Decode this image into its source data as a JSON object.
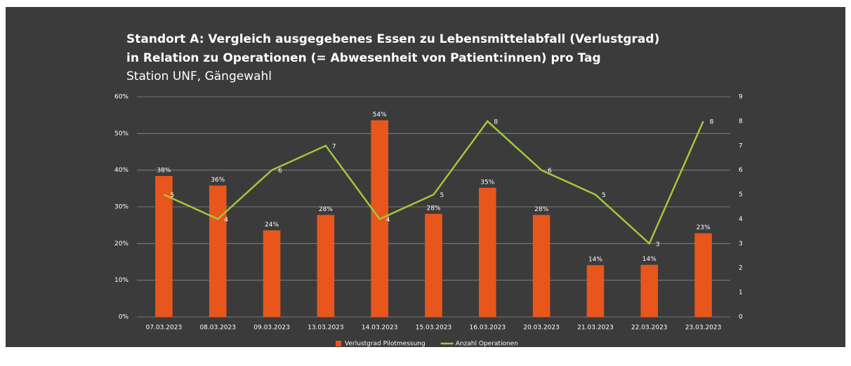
{
  "chart_data": {
    "type": "bar_line",
    "title": "Standort A: Vergleich ausgegebenes Essen zu Lebensmittelabfall (Verlustgrad)",
    "title_line2": "in Relation zu Operationen (= Abwesenheit von Patient:innen) pro Tag",
    "subtitle": "Station UNF, Gängewahl",
    "categories": [
      "07.03.2023",
      "08.03.2023",
      "09.03.2023",
      "13.03.2023",
      "14.03.2023",
      "15.03.2023",
      "16.03.2023",
      "20.03.2023",
      "21.03.2023",
      "22.03.2023",
      "23.03.2023"
    ],
    "series": [
      {
        "name": "Verlustgrad Pilotmessung",
        "type": "bar",
        "color": "#e8561c",
        "values": [
          38.4,
          35.8,
          23.6,
          27.8,
          53.6,
          28.1,
          35.2,
          27.8,
          14.1,
          14.2,
          22.8
        ],
        "value_labels": [
          "38%",
          "36%",
          "24%",
          "28%",
          "54%",
          "28%",
          "35%",
          "28%",
          "14%",
          "14%",
          "23%"
        ]
      },
      {
        "name": "Anzahl Operationen",
        "type": "line",
        "axis": "y2",
        "color": "#a4c639",
        "values": [
          5,
          4,
          6,
          7,
          4,
          5,
          8,
          6,
          5,
          3,
          8
        ]
      }
    ],
    "ylim": [
      0,
      60
    ],
    "yticks": [
      {
        "value": 0,
        "label": "0%"
      },
      {
        "value": 10,
        "label": "10%"
      },
      {
        "value": 20,
        "label": "20%"
      },
      {
        "value": 30,
        "label": "30%"
      },
      {
        "value": 40,
        "label": "40%"
      },
      {
        "value": 50,
        "label": "50%"
      },
      {
        "value": 60,
        "label": "60%"
      }
    ],
    "y2lim": [
      0,
      9
    ],
    "y2ticks": [
      0,
      1,
      2,
      3,
      4,
      5,
      6,
      7,
      8,
      9
    ],
    "grid": true,
    "legend": "bottom"
  }
}
